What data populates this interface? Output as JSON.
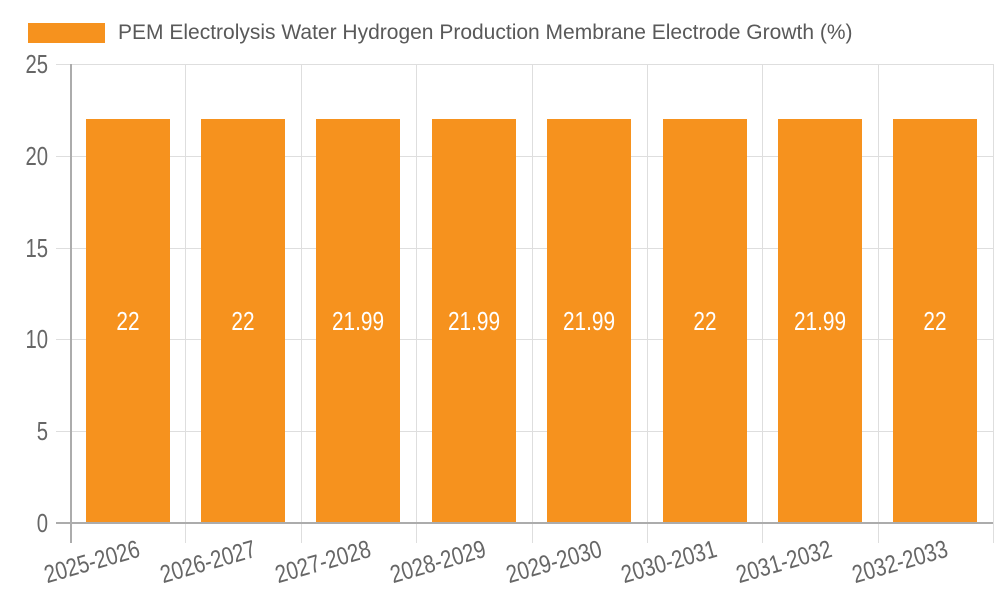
{
  "chart_data": {
    "type": "bar",
    "title": "PEM Electrolysis Water Hydrogen Production Membrane Electrode Growth (%)",
    "categories": [
      "2025-2026",
      "2026-2027",
      "2027-2028",
      "2028-2029",
      "2029-2030",
      "2030-2031",
      "2031-2032",
      "2032-2033"
    ],
    "values": [
      22,
      22,
      21.99,
      21.99,
      21.99,
      22,
      21.99,
      22
    ],
    "bar_labels": [
      "22",
      "22",
      "21.99",
      "21.99",
      "21.99",
      "22",
      "21.99",
      "22"
    ],
    "xlabel": "",
    "ylabel": "",
    "ylim": [
      0,
      25
    ],
    "yticks": [
      0,
      5,
      10,
      15,
      20,
      25
    ],
    "grid": true,
    "legend_position": "top-left",
    "colors": {
      "bar": "#F6921E",
      "gridline": "#DEDEDE",
      "axis_line": "#ACACAC",
      "tick_text": "#666666",
      "legend_text": "#595959",
      "bar_label_text": "#FFFFFF",
      "background": "#FFFFFF"
    }
  }
}
